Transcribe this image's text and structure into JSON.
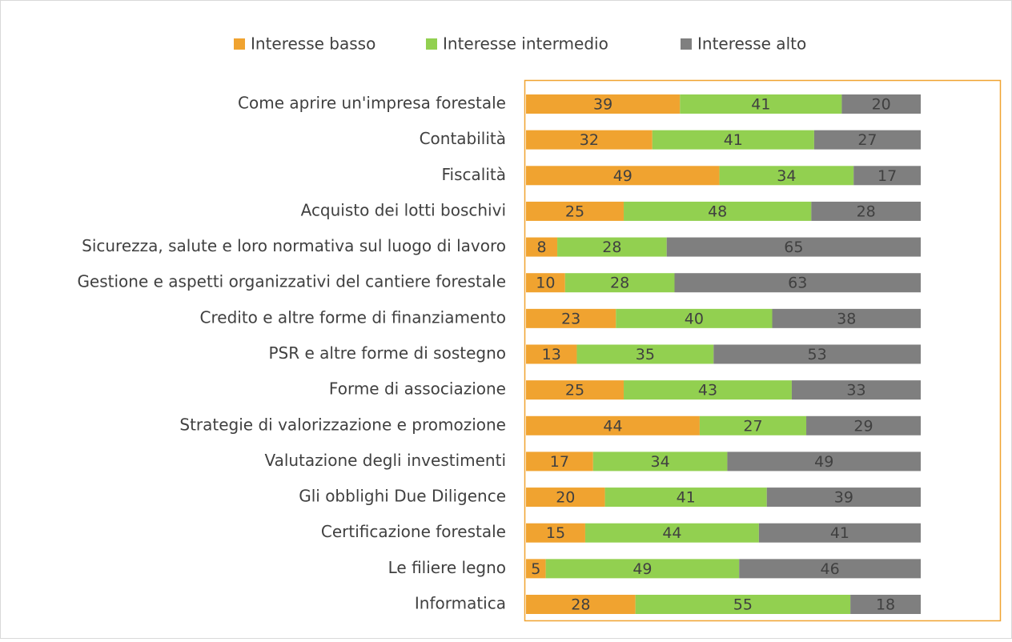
{
  "chart_data": {
    "type": "bar",
    "orientation": "horizontal",
    "stacking": "percent",
    "categories": [
      "Come aprire un'impresa forestale",
      "Contabilità",
      "Fiscalità",
      "Acquisto dei lotti boschivi",
      "Sicurezza, salute e loro normativa sul luogo di lavoro",
      "Gestione e aspetti organizzativi del cantiere forestale",
      "Credito e altre forme di finanziamento",
      "PSR e altre forme di sostegno",
      "Forme di associazione",
      "Strategie di valorizzazione e promozione",
      "Valutazione degli investimenti",
      "Gli obblighi Due Diligence",
      "Certificazione forestale",
      "Le filiere legno",
      "Informatica"
    ],
    "series": [
      {
        "name": "Interesse basso",
        "color": "#f0a330",
        "values": [
          39,
          32,
          49,
          25,
          8,
          10,
          23,
          13,
          25,
          44,
          17,
          20,
          15,
          5,
          28
        ]
      },
      {
        "name": "Interesse intermedio",
        "color": "#92d050",
        "values": [
          41,
          41,
          34,
          48,
          28,
          28,
          40,
          35,
          43,
          27,
          34,
          41,
          44,
          49,
          55
        ]
      },
      {
        "name": "Interesse alto",
        "color": "#7f7f7f",
        "values": [
          20,
          27,
          17,
          28,
          65,
          63,
          38,
          53,
          33,
          29,
          49,
          39,
          41,
          46,
          18
        ]
      }
    ],
    "legend": "top"
  }
}
